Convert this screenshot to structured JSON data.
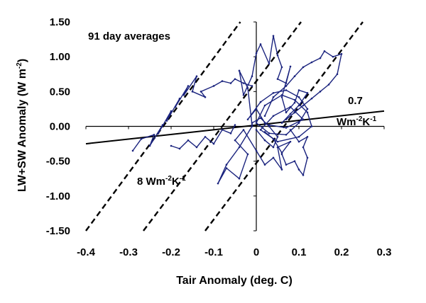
{
  "chart_data": {
    "type": "line",
    "title": "",
    "xlabel": "Tair Anomaly (deg. C)",
    "ylabel": {
      "main": "LW+SW Anomaly (W m",
      "sup": "-2",
      "close": ")"
    },
    "xlim": [
      -0.4,
      0.3
    ],
    "ylim": [
      -1.5,
      1.5
    ],
    "x_ticks": [
      "-0.4",
      "-0.3",
      "-0.2",
      "-0.1",
      "0",
      "0.1",
      "0.2",
      "0.3"
    ],
    "y_ticks": [
      "1.50",
      "1.00",
      "0.50",
      "0.00",
      "-0.50",
      "-1.00",
      "-1.50"
    ],
    "grid": false,
    "annotations": {
      "averaging": "91 day averages",
      "steep_slope": {
        "prefix": "8 Wm",
        "sup1": "-2",
        "mid": "K",
        "sup2": "-1"
      },
      "shallow_slope_value": "0.7",
      "shallow_slope_units": {
        "prefix": "Wm",
        "sup1": "-2",
        "mid": "K",
        "sup2": "-1"
      }
    },
    "reference_lines": [
      {
        "name": "",
        "style": "solid",
        "color": "#000000",
        "x": [
          -0.4,
          0.3
        ],
        "y": [
          -0.25,
          0.22
        ]
      },
      {
        "name": "",
        "style": "dashed",
        "color": "#000000",
        "x": [
          -0.4,
          -0.0375
        ],
        "y": [
          -1.5,
          1.5
        ]
      },
      {
        "name": "",
        "style": "dashed",
        "color": "#000000",
        "x": [
          -0.265,
          0.105
        ],
        "y": [
          -1.5,
          1.5
        ]
      },
      {
        "name": "",
        "style": "dashed",
        "color": "#000000",
        "x": [
          -0.12,
          0.25
        ],
        "y": [
          -1.5,
          1.5
        ]
      }
    ],
    "series": [
      {
        "name": "",
        "color": "#1a237e",
        "x": [
          -0.29,
          -0.27,
          -0.24,
          -0.25,
          -0.22,
          -0.23,
          -0.2,
          -0.21,
          -0.18,
          -0.19,
          -0.16,
          -0.17,
          -0.14,
          -0.15,
          -0.12,
          -0.13,
          -0.1,
          -0.08,
          -0.06,
          -0.05,
          -0.03,
          -0.01
        ],
        "y": [
          -0.35,
          -0.18,
          -0.12,
          -0.28,
          0.02,
          -0.1,
          0.22,
          0.08,
          0.4,
          0.28,
          0.58,
          0.45,
          0.72,
          0.5,
          0.42,
          0.5,
          0.58,
          0.65,
          0.62,
          0.68,
          0.62,
          0.58
        ]
      },
      {
        "name": "",
        "color": "#1a237e",
        "x": [
          -0.2,
          -0.18,
          -0.16,
          -0.14,
          -0.12,
          -0.1,
          -0.08,
          -0.06,
          -0.05
        ],
        "y": [
          -0.28,
          -0.32,
          -0.2,
          -0.3,
          -0.15,
          -0.25,
          -0.05,
          -0.1,
          0.02
        ]
      },
      {
        "name": "",
        "color": "#1a237e",
        "x": [
          -0.01,
          -0.02,
          -0.04,
          -0.03,
          -0.01,
          0.0,
          0.01,
          0.03,
          0.04,
          0.05,
          0.06,
          0.05,
          0.07,
          0.08,
          0.06,
          0.07,
          0.09,
          0.1,
          0.12,
          0.1,
          0.08,
          0.06
        ],
        "y": [
          0.02,
          0.55,
          0.8,
          0.45,
          0.72,
          1.05,
          1.18,
          0.9,
          1.3,
          1.02,
          0.85,
          0.68,
          0.62,
          0.86,
          0.42,
          0.2,
          0.34,
          0.52,
          0.48,
          0.3,
          0.18,
          0.05
        ]
      },
      {
        "name": "",
        "color": "#1a237e",
        "x": [
          0.02,
          0.04,
          0.07,
          0.09,
          0.11,
          0.13,
          0.15,
          0.16,
          0.18,
          0.2,
          0.19,
          0.17,
          0.15,
          0.13,
          0.11,
          0.09,
          0.07
        ],
        "y": [
          0.15,
          0.42,
          0.58,
          0.72,
          0.85,
          0.92,
          0.98,
          1.08,
          1.0,
          1.04,
          0.75,
          0.6,
          0.5,
          0.4,
          0.3,
          0.2,
          0.1
        ]
      },
      {
        "name": "",
        "color": "#1a237e",
        "x": [
          0.02,
          0.0,
          -0.02,
          0.01,
          0.04,
          0.07,
          0.1,
          0.12,
          0.1,
          0.07,
          0.03,
          0.0,
          0.02,
          0.06,
          0.09,
          0.12,
          0.13,
          0.1,
          0.05,
          0.01,
          0.04,
          0.08,
          0.11,
          0.07,
          0.03
        ],
        "y": [
          0.05,
          0.25,
          0.1,
          0.35,
          0.48,
          0.52,
          0.42,
          0.25,
          0.05,
          -0.12,
          -0.1,
          0.05,
          0.3,
          0.45,
          0.38,
          0.2,
          0.0,
          -0.15,
          -0.22,
          -0.05,
          0.15,
          0.28,
          0.1,
          -0.02,
          0.02
        ]
      },
      {
        "name": "",
        "color": "#1a237e",
        "x": [
          -0.01,
          -0.04,
          -0.07,
          -0.09,
          -0.07,
          -0.04,
          -0.02,
          -0.05,
          -0.03,
          0.0,
          0.02,
          0.04,
          0.06,
          0.05,
          0.08,
          0.06,
          0.04,
          0.02
        ],
        "y": [
          0.0,
          -0.3,
          -0.55,
          -0.82,
          -0.6,
          -0.75,
          -0.4,
          -0.2,
          -0.05,
          -0.35,
          -0.55,
          -0.45,
          -0.62,
          -0.3,
          -0.22,
          -0.38,
          -0.18,
          -0.08
        ]
      },
      {
        "name": "",
        "color": "#1a237e",
        "x": [
          0.06,
          0.07,
          0.09,
          0.1,
          0.11,
          0.12,
          0.11,
          0.12,
          0.1,
          0.08
        ],
        "y": [
          -0.4,
          -0.55,
          -0.5,
          -0.62,
          -0.7,
          -0.45,
          -0.3,
          -0.15,
          -0.22,
          -0.05
        ]
      },
      {
        "name": "",
        "color": "#1a237e",
        "x": [
          0.0,
          0.02,
          0.04,
          0.05,
          0.03,
          0.01,
          -0.01
        ],
        "y": [
          -0.05,
          -0.2,
          -0.3,
          -0.15,
          0.0,
          0.12,
          0.05
        ]
      }
    ]
  }
}
